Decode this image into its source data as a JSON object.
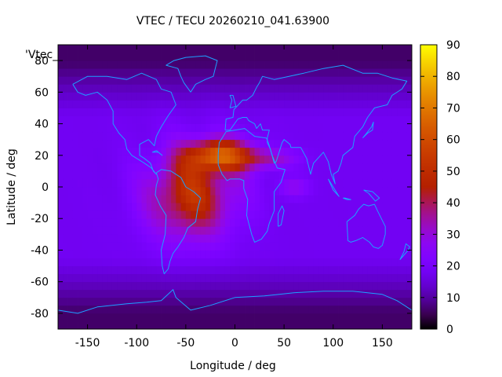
{
  "chart_data": {
    "type": "heatmap",
    "title": "VTEC / TECU 20260210_041.63900",
    "xlabel": "Longitude / deg",
    "ylabel": "Latitude / deg",
    "key_label": "'Vtec_",
    "xlim": [
      -180,
      180
    ],
    "ylim": [
      -90,
      90
    ],
    "x_ticks": [
      -150,
      -100,
      -50,
      0,
      50,
      100,
      150
    ],
    "y_ticks": [
      -80,
      -60,
      -40,
      -20,
      0,
      20,
      40,
      60,
      80
    ],
    "colorbar": {
      "min": 0,
      "max": 90,
      "ticks": [
        0,
        10,
        20,
        30,
        40,
        50,
        60,
        70,
        80,
        90
      ],
      "palette": "gnuplot-pm3d-7-5-15"
    },
    "field_model": {
      "background_tecu": 18,
      "anomaly_peak_center": {
        "lon": -15,
        "lat": 20,
        "tecu": 75
      },
      "anomaly_body_center": {
        "lon": -45,
        "lat": -5,
        "tecu": 50
      },
      "high_latitude_min_tecu": 6
    },
    "grid": {
      "lon_step": 5,
      "lat_step": 5
    },
    "coastline_color": "#1ea0ff"
  }
}
